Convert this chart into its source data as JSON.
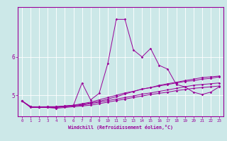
{
  "xlabel": "Windchill (Refroidissement éolien,°C)",
  "bg_color": "#cce8e8",
  "line_color": "#990099",
  "grid_color": "#ffffff",
  "xlim": [
    -0.5,
    23.5
  ],
  "ylim": [
    4.45,
    7.3
  ],
  "yticks": [
    5,
    6
  ],
  "xticks": [
    0,
    1,
    2,
    3,
    4,
    5,
    6,
    7,
    8,
    9,
    10,
    11,
    12,
    13,
    14,
    15,
    16,
    17,
    18,
    19,
    20,
    21,
    22,
    23
  ],
  "series": [
    [
      4.85,
      4.68,
      4.68,
      4.7,
      4.7,
      4.72,
      4.74,
      5.32,
      4.88,
      5.05,
      5.82,
      6.98,
      6.98,
      6.18,
      6.0,
      6.22,
      5.78,
      5.68,
      5.28,
      5.22,
      5.08,
      5.02,
      5.08,
      5.22
    ],
    [
      4.85,
      4.7,
      4.68,
      4.7,
      4.7,
      4.7,
      4.73,
      4.76,
      4.8,
      4.84,
      4.9,
      4.96,
      5.03,
      5.1,
      5.16,
      5.2,
      5.26,
      5.3,
      5.34,
      5.38,
      5.42,
      5.46,
      5.48,
      5.5
    ],
    [
      4.85,
      4.7,
      4.7,
      4.7,
      4.7,
      4.72,
      4.74,
      4.78,
      4.82,
      4.88,
      4.94,
      5.0,
      5.06,
      5.1,
      5.16,
      5.2,
      5.24,
      5.28,
      5.32,
      5.36,
      5.38,
      5.42,
      5.44,
      5.48
    ],
    [
      4.85,
      4.7,
      4.68,
      4.68,
      4.68,
      4.7,
      4.72,
      4.74,
      4.78,
      4.82,
      4.86,
      4.9,
      4.94,
      4.98,
      5.03,
      5.06,
      5.1,
      5.14,
      5.18,
      5.22,
      5.26,
      5.28,
      5.3,
      5.32
    ],
    [
      4.85,
      4.7,
      4.68,
      4.68,
      4.66,
      4.68,
      4.7,
      4.72,
      4.74,
      4.78,
      4.82,
      4.86,
      4.9,
      4.94,
      4.98,
      5.02,
      5.05,
      5.08,
      5.12,
      5.15,
      5.18,
      5.2,
      5.22,
      5.24
    ]
  ]
}
